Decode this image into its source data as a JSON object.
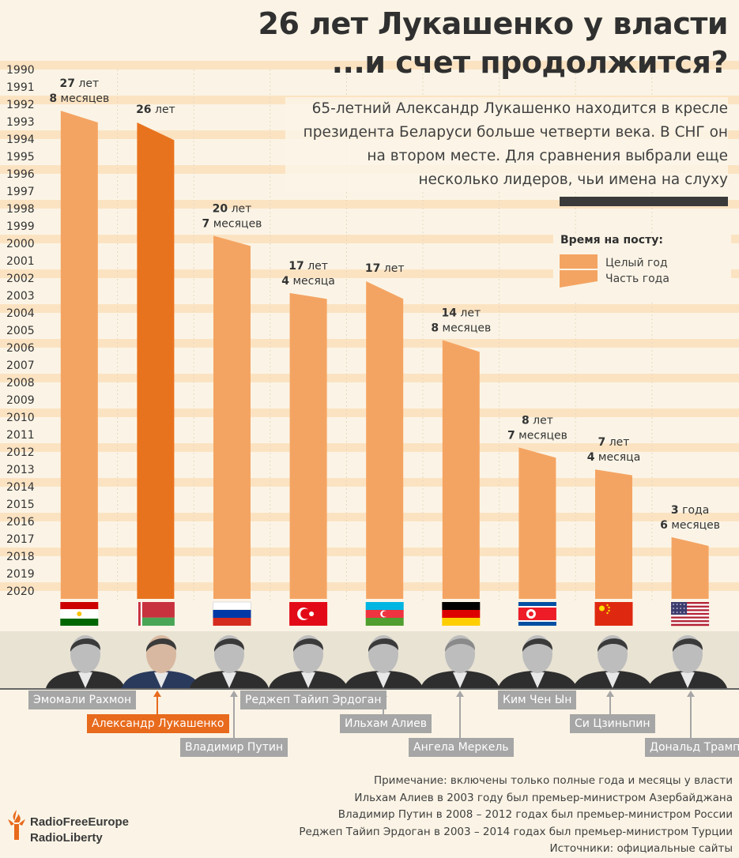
{
  "title_line1": "26 лет Лукашенко у власти",
  "title_line2": "...и счет продолжится?",
  "subtitle": "65-летний Александр Лукашенко находится в кресле президента Беларуси больше четверти века. В СНГ он на втором месте. Для сравнения выбрали еще несколько лидеров, чьи имена на слуху",
  "legend": {
    "title": "Время на посту:",
    "full_year": "Целый год",
    "part_year": "Часть года"
  },
  "colors": {
    "bar": "#f4a462",
    "bar_highlight": "#e8731f",
    "background": "#fbf4e6",
    "band": "#fbe3c2",
    "label_gray": "#a6a6a6",
    "label_highlight": "#e86a1c"
  },
  "chart_data": {
    "type": "bar",
    "title": "26 лет Лукашенко у власти",
    "orientation": "vertical",
    "y_axis_years": [
      "1990",
      "1991",
      "1992",
      "1993",
      "1994",
      "1995",
      "1996",
      "1997",
      "1998",
      "1999",
      "2000",
      "2001",
      "2002",
      "2003",
      "2004",
      "2005",
      "2006",
      "2007",
      "2008",
      "2009",
      "2010",
      "2011",
      "2012",
      "2013",
      "2014",
      "2015",
      "2016",
      "2017",
      "2018",
      "2019",
      "2020"
    ],
    "ylim": [
      1990,
      2020
    ],
    "categories": [
      "Эмомали Рахмон",
      "Александр Лукашенко",
      "Владимир Путин",
      "Реджеп Тайип Эрдоган",
      "Ильхам Алиев",
      "Ангела Меркель",
      "Ким Чен Ын",
      "Си Цзиньпин",
      "Дональд Трамп"
    ],
    "values": [
      27.667,
      26,
      20.583,
      17.333,
      17,
      14.667,
      8.583,
      7.333,
      3.5
    ],
    "highlight_index": 1,
    "value_labels": [
      {
        "line1": "27",
        "unit1": "лет",
        "line2": "8",
        "unit2": "месяцев"
      },
      {
        "line1": "26",
        "unit1": "лет",
        "line2": "",
        "unit2": ""
      },
      {
        "line1": "20",
        "unit1": "лет",
        "line2": "7",
        "unit2": "месяцев"
      },
      {
        "line1": "17",
        "unit1": "лет",
        "line2": "4",
        "unit2": "месяца"
      },
      {
        "line1": "17",
        "unit1": "лет",
        "line2": "",
        "unit2": ""
      },
      {
        "line1": "14",
        "unit1": "лет",
        "line2": "8",
        "unit2": "месяцев"
      },
      {
        "line1": "8",
        "unit1": "лет",
        "line2": "7",
        "unit2": "месяцев"
      },
      {
        "line1": "7",
        "unit1": "лет",
        "line2": "4",
        "unit2": "месяца"
      },
      {
        "line1": "3",
        "unit1": "года",
        "line2": "6",
        "unit2": "месяцев"
      }
    ],
    "countries": [
      "Таджикистан",
      "Беларусь",
      "Россия",
      "Турция",
      "Азербайджан",
      "Германия",
      "КНДР",
      "Китай",
      "США"
    ]
  },
  "names": [
    "Эмомали Рахмон",
    "Александр Лукашенко",
    "Владимир Путин",
    "Реджеп Тайип Эрдоган",
    "Ильхам Алиев",
    "Ангела Меркель",
    "Ким Чен Ын",
    "Си Цзиньпин",
    "Дональд Трамп"
  ],
  "notes": [
    "Примечание: включены только полные года и месяцы у власти",
    "Ильхам Алиев в 2003 году был премьер-министром Азербайджана",
    "Владимир Путин в 2008 – 2012 годах был премьер-министром России",
    "Реджеп Тайип Эрдоган в 2003 – 2014 годах был премьер-министром Турции",
    "Источники: официальные сайты"
  ],
  "logo": {
    "line1": "RadioFreeEurope",
    "line2": "RadioLiberty",
    "icon": "torch-icon"
  }
}
